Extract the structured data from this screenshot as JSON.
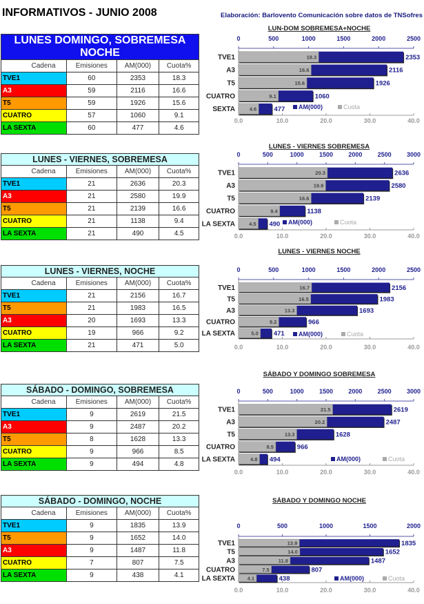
{
  "header": {
    "title": "INFORMATIVOS - JUNIO 2008",
    "credit": "Elaboración: Barlovento Comunicación sobre datos de TNSofres"
  },
  "colors": {
    "TVE1": "#00ccff",
    "A3": "#ff0000",
    "T5": "#ff9900",
    "CUATRO": "#ffff00",
    "LA SEXTA": "#00e000",
    "SEXTA": "#00e000",
    "am_bar": "#1f1f8f",
    "cuota_bar": "#b4b4b4"
  },
  "tables": [
    {
      "title": "LUNES DOMINGO, SOBREMESA NOCHE",
      "headers": [
        "Cadena",
        "Emisiones",
        "AM(000)",
        "Cuota%"
      ],
      "rows": [
        [
          "TVE1",
          "60",
          "2353",
          "18.3"
        ],
        [
          "A3",
          "59",
          "2116",
          "16.6"
        ],
        [
          "T5",
          "59",
          "1926",
          "15.6"
        ],
        [
          "CUATRO",
          "57",
          "1060",
          "9.1"
        ],
        [
          "LA SEXTA",
          "60",
          "477",
          "4.6"
        ]
      ]
    },
    {
      "title": "LUNES - VIERNES, SOBREMESA",
      "headers": [
        "Cadena",
        "Emisiones",
        "AM(000)",
        "Cuota%"
      ],
      "rows": [
        [
          "TVE1",
          "21",
          "2636",
          "20.3"
        ],
        [
          "A3",
          "21",
          "2580",
          "19.9"
        ],
        [
          "T5",
          "21",
          "2139",
          "16.6"
        ],
        [
          "CUATRO",
          "21",
          "1138",
          "9.4"
        ],
        [
          "LA SEXTA",
          "21",
          "490",
          "4.5"
        ]
      ]
    },
    {
      "title": "LUNES - VIERNES, NOCHE",
      "headers": [
        "Cadena",
        "Emisiones",
        "AM(000)",
        "Cuota%"
      ],
      "rows": [
        [
          "TVE1",
          "21",
          "2156",
          "16.7"
        ],
        [
          "T5",
          "21",
          "1983",
          "16.5"
        ],
        [
          "A3",
          "20",
          "1693",
          "13.3"
        ],
        [
          "CUATRO",
          "19",
          "966",
          "9.2"
        ],
        [
          "LA SEXTA",
          "21",
          "471",
          "5.0"
        ]
      ]
    },
    {
      "title": "SÁBADO - DOMINGO, SOBREMESA",
      "headers": [
        "Cadena",
        "Emisiones",
        "AM(000)",
        "Cuota%"
      ],
      "rows": [
        [
          "TVE1",
          "9",
          "2619",
          "21.5"
        ],
        [
          "A3",
          "9",
          "2487",
          "20.2"
        ],
        [
          "T5",
          "8",
          "1628",
          "13.3"
        ],
        [
          "CUATRO",
          "9",
          "966",
          "8.5"
        ],
        [
          "LA SEXTA",
          "9",
          "494",
          "4.8"
        ]
      ]
    },
    {
      "title": "SÁBADO - DOMINGO, NOCHE",
      "headers": [
        "Cadena",
        "Emisiones",
        "AM(000)",
        "Cuota%"
      ],
      "rows": [
        [
          "TVE1",
          "9",
          "1835",
          "13.9"
        ],
        [
          "T5",
          "9",
          "1652",
          "14.0"
        ],
        [
          "A3",
          "9",
          "1487",
          "11.8"
        ],
        [
          "CUATRO",
          "7",
          "807",
          "7.5"
        ],
        [
          "LA SEXTA",
          "9",
          "438",
          "4.1"
        ]
      ]
    }
  ],
  "chart_data": [
    {
      "type": "bar",
      "title": "LUN-DOM SOBREMESA+NOCHE",
      "categories": [
        "TVE1",
        "A3",
        "T5",
        "CUATRO",
        "SEXTA"
      ],
      "series": [
        {
          "name": "AM(000)",
          "values": [
            2353,
            2116,
            1926,
            1060,
            477
          ]
        },
        {
          "name": "Cuota",
          "values": [
            18.3,
            16.6,
            15.6,
            9.1,
            4.6
          ]
        }
      ],
      "am_axis": {
        "range": [
          0,
          2500
        ],
        "ticks": [
          "0",
          "500",
          "1000",
          "1500",
          "2000",
          "2500"
        ]
      },
      "cuota_axis": {
        "range": [
          0,
          40
        ],
        "ticks": [
          "0.0",
          "10.0",
          "20.0",
          "30.0",
          "40.0"
        ]
      },
      "legend": "bottom-inside"
    },
    {
      "type": "bar",
      "title": "LUNES - VIERNES SOBREMESA",
      "categories": [
        "TVE1",
        "A3",
        "T5",
        "CUATRO",
        "LA SEXTA"
      ],
      "series": [
        {
          "name": "AM(000)",
          "values": [
            2636,
            2580,
            2139,
            1138,
            490
          ]
        },
        {
          "name": "Cuota",
          "values": [
            20.3,
            19.9,
            16.6,
            9.4,
            4.5
          ]
        }
      ],
      "am_axis": {
        "range": [
          0,
          3000
        ],
        "ticks": [
          "0",
          "500",
          "1000",
          "1500",
          "2000",
          "2500",
          "3000"
        ]
      },
      "cuota_axis": {
        "range": [
          0,
          40
        ],
        "ticks": [
          "0.0",
          "10.0",
          "20.0",
          "30.0",
          "40.0"
        ]
      },
      "legend": "bottom-inside"
    },
    {
      "type": "bar",
      "title": "LUNES - VIERNES  NOCHE",
      "categories": [
        "TVE1",
        "T5",
        "A3",
        "CUATRO",
        "LA SEXTA"
      ],
      "series": [
        {
          "name": "AM(000)",
          "values": [
            2156,
            1983,
            1693,
            966,
            471
          ]
        },
        {
          "name": "Cuota",
          "values": [
            16.7,
            16.5,
            13.3,
            9.2,
            5.0
          ]
        }
      ],
      "am_axis": {
        "range": [
          0,
          2500
        ],
        "ticks": [
          "0",
          "500",
          "1000",
          "1500",
          "2000",
          "2500"
        ]
      },
      "cuota_axis": {
        "range": [
          0,
          40
        ],
        "ticks": [
          "0.0",
          "10.0",
          "20.0",
          "30.0",
          "40.0"
        ]
      },
      "legend": "bottom-inside"
    },
    {
      "type": "bar",
      "title": "SÁBADO Y DOMINGO SOBREMESA",
      "categories": [
        "TVE1",
        "A3",
        "T5",
        "CUATRO",
        "LA SEXTA"
      ],
      "series": [
        {
          "name": "AM(000)",
          "values": [
            2619,
            2487,
            1628,
            966,
            494
          ]
        },
        {
          "name": "Cuota",
          "values": [
            21.5,
            20.2,
            13.3,
            8.5,
            4.8
          ]
        }
      ],
      "am_axis": {
        "range": [
          0,
          3000
        ],
        "ticks": [
          "0",
          "500",
          "1000",
          "1500",
          "2000",
          "2500",
          "3000"
        ]
      },
      "cuota_axis": {
        "range": [
          0,
          40
        ],
        "ticks": [
          "0.0",
          "10.0",
          "20.0",
          "30.0",
          "40.0"
        ]
      },
      "legend": "bottom-inside"
    },
    {
      "type": "bar",
      "title": "SÁBADO Y DOMINGO  NOCHE",
      "categories": [
        "TVE1",
        "T5",
        "A3",
        "CUATRO",
        "LA SEXTA"
      ],
      "series": [
        {
          "name": "AM(000)",
          "values": [
            1835,
            1652,
            1487,
            807,
            438
          ]
        },
        {
          "name": "Cuota",
          "values": [
            13.9,
            14.0,
            11.8,
            7.5,
            4.1
          ]
        }
      ],
      "am_axis": {
        "range": [
          0,
          2000
        ],
        "ticks": [
          "0",
          "500",
          "1000",
          "1500",
          "2000"
        ]
      },
      "cuota_axis": {
        "range": [
          0,
          40
        ],
        "ticks": [
          "0.0",
          "10.0",
          "20.0",
          "30.0",
          "40.0"
        ]
      },
      "legend": "bottom-inside"
    }
  ]
}
